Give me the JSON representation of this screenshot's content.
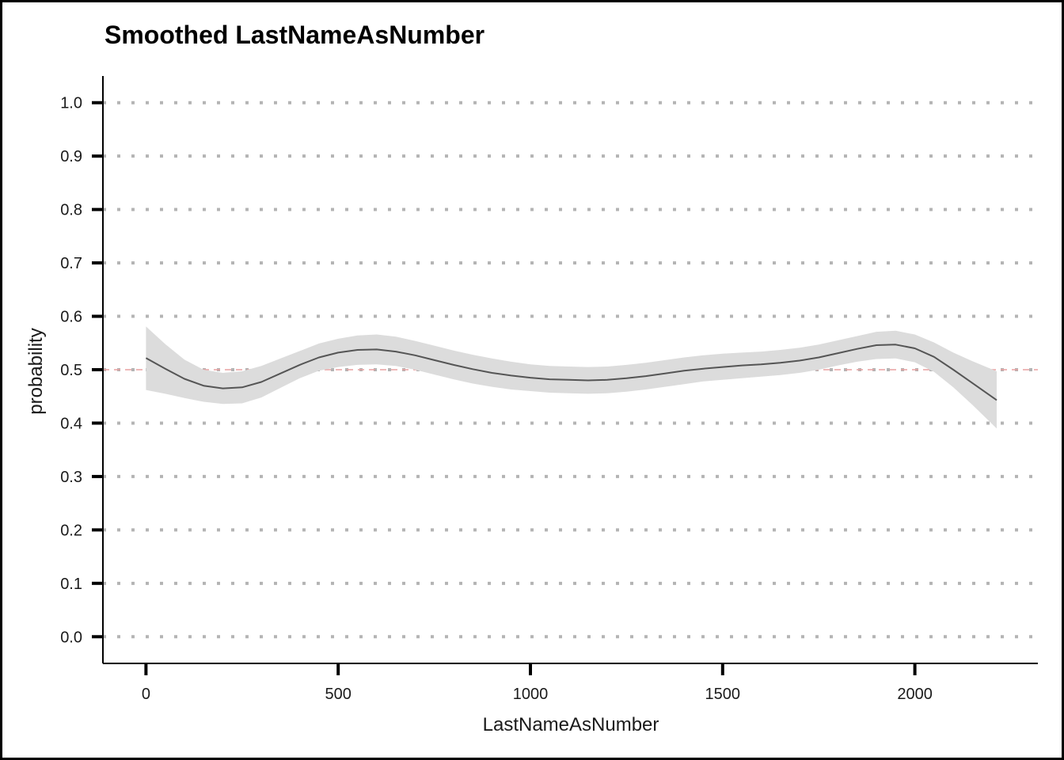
{
  "chart_data": {
    "type": "line",
    "title": "Smoothed LastNameAsNumber",
    "xlabel": "LastNameAsNumber",
    "ylabel": "probability",
    "xlim": [
      -112,
      2320
    ],
    "ylim": [
      -0.05,
      1.05
    ],
    "x_ticks": [
      0,
      500,
      1000,
      1500,
      2000
    ],
    "y_ticks": [
      0.0,
      0.1,
      0.2,
      0.3,
      0.4,
      0.5,
      0.6,
      0.7,
      0.8,
      0.9,
      1.0
    ],
    "y_tick_labels": [
      "0.0",
      "0.1",
      "0.2",
      "0.3",
      "0.4",
      "0.5",
      "0.6",
      "0.7",
      "0.8",
      "0.9",
      "1.0"
    ],
    "grid": "horizontal-dotted",
    "reference_line": {
      "y": 0.5,
      "color": "#e8a0a0",
      "style": "dashed"
    },
    "series": [
      {
        "x": [
          0,
          50,
          100,
          150,
          200,
          250,
          300,
          350,
          400,
          450,
          500,
          550,
          600,
          650,
          700,
          750,
          800,
          850,
          900,
          950,
          1000,
          1050,
          1100,
          1150,
          1200,
          1250,
          1300,
          1350,
          1400,
          1450,
          1500,
          1550,
          1600,
          1650,
          1700,
          1750,
          1800,
          1850,
          1900,
          1950,
          2000,
          2050,
          2100,
          2150,
          2213
        ],
        "y": [
          0.522,
          0.502,
          0.483,
          0.47,
          0.465,
          0.467,
          0.477,
          0.493,
          0.509,
          0.523,
          0.532,
          0.537,
          0.538,
          0.534,
          0.527,
          0.518,
          0.509,
          0.501,
          0.494,
          0.489,
          0.485,
          0.482,
          0.481,
          0.48,
          0.481,
          0.484,
          0.488,
          0.493,
          0.498,
          0.502,
          0.505,
          0.508,
          0.51,
          0.513,
          0.517,
          0.523,
          0.531,
          0.539,
          0.546,
          0.547,
          0.54,
          0.524,
          0.5,
          0.475,
          0.443
        ],
        "lower": [
          0.462,
          0.455,
          0.447,
          0.44,
          0.436,
          0.437,
          0.448,
          0.466,
          0.484,
          0.498,
          0.505,
          0.509,
          0.51,
          0.507,
          0.5,
          0.491,
          0.482,
          0.474,
          0.468,
          0.463,
          0.46,
          0.457,
          0.456,
          0.455,
          0.456,
          0.459,
          0.463,
          0.468,
          0.473,
          0.478,
          0.481,
          0.484,
          0.487,
          0.49,
          0.494,
          0.5,
          0.508,
          0.515,
          0.52,
          0.521,
          0.514,
          0.496,
          0.467,
          0.434,
          0.39
        ],
        "upper": [
          0.581,
          0.548,
          0.519,
          0.5,
          0.494,
          0.497,
          0.507,
          0.521,
          0.535,
          0.549,
          0.558,
          0.564,
          0.566,
          0.562,
          0.554,
          0.545,
          0.536,
          0.528,
          0.521,
          0.515,
          0.51,
          0.507,
          0.506,
          0.505,
          0.506,
          0.509,
          0.513,
          0.518,
          0.523,
          0.527,
          0.53,
          0.532,
          0.534,
          0.537,
          0.541,
          0.547,
          0.555,
          0.563,
          0.571,
          0.573,
          0.566,
          0.551,
          0.532,
          0.516,
          0.497
        ],
        "line_color": "#555555",
        "band_color": "#dcdcdc"
      }
    ]
  }
}
